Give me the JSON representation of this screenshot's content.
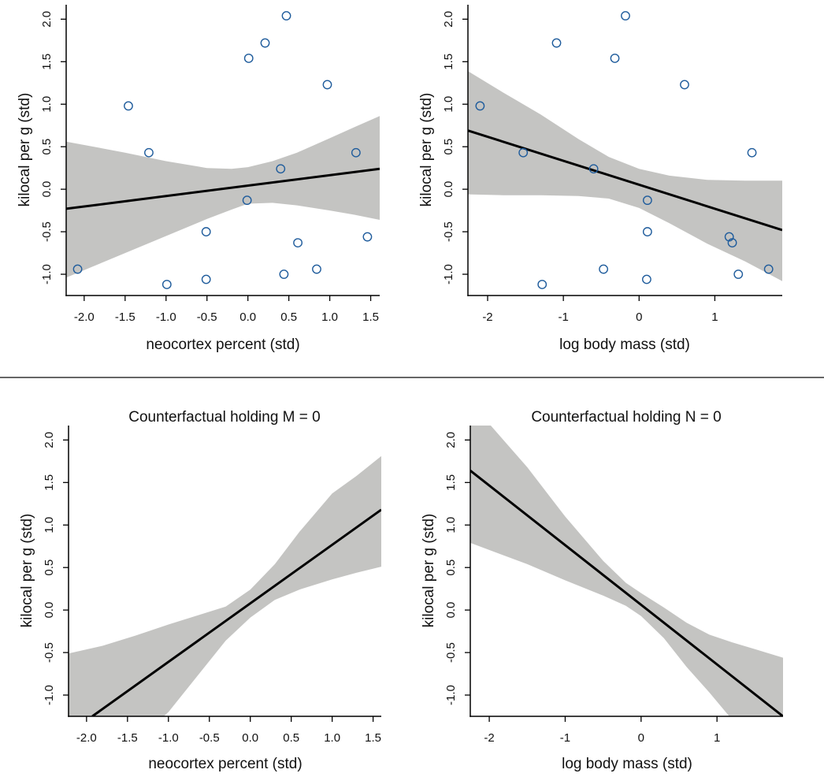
{
  "figure": {
    "divider_color": "#333333",
    "band_color": "#c4c4c2",
    "line_color": "#000000",
    "point_color": "#1f5c9c"
  },
  "chart_data": [
    {
      "id": "top-left",
      "type": "scatter",
      "title": "",
      "xlabel": "neocortex percent (std)",
      "ylabel": "kilocal per g (std)",
      "xlim": [
        -2.22,
        1.61
      ],
      "ylim": [
        -1.25,
        2.17
      ],
      "xticks": [
        -2.0,
        -1.5,
        -1.0,
        -0.5,
        0.0,
        0.5,
        1.0,
        1.5
      ],
      "xtick_labels": [
        "-2.0",
        "-1.5",
        "-1.0",
        "-0.5",
        "0.0",
        "0.5",
        "1.0",
        "1.5"
      ],
      "yticks": [
        -1.0,
        -0.5,
        0.0,
        0.5,
        1.0,
        1.5,
        2.0
      ],
      "ytick_labels": [
        "-1.0",
        "-0.5",
        "0.0",
        "0.5",
        "1.0",
        "1.5",
        "2.0"
      ],
      "grid": false,
      "points": [
        {
          "x": 0.47,
          "y": 2.04
        },
        {
          "x": 0.21,
          "y": 1.72
        },
        {
          "x": 0.01,
          "y": 1.54
        },
        {
          "x": 0.97,
          "y": 1.23
        },
        {
          "x": -1.46,
          "y": 0.98
        },
        {
          "x": -1.21,
          "y": 0.43
        },
        {
          "x": 1.32,
          "y": 0.43
        },
        {
          "x": 0.4,
          "y": 0.24
        },
        {
          "x": -0.01,
          "y": -0.13
        },
        {
          "x": -0.51,
          "y": -0.5
        },
        {
          "x": 1.46,
          "y": -0.56
        },
        {
          "x": 0.61,
          "y": -0.63
        },
        {
          "x": -2.08,
          "y": -0.94
        },
        {
          "x": 0.84,
          "y": -0.94
        },
        {
          "x": 0.44,
          "y": -1.0
        },
        {
          "x": -0.51,
          "y": -1.06
        },
        {
          "x": -0.99,
          "y": -1.12
        }
      ],
      "mean_line": {
        "x": [
          -2.22,
          1.61
        ],
        "y": [
          -0.23,
          0.24
        ]
      },
      "interval": {
        "x": [
          -2.22,
          -1.5,
          -1.0,
          -0.5,
          -0.2,
          0.0,
          0.3,
          0.6,
          1.0,
          1.3,
          1.61
        ],
        "upper": [
          0.56,
          0.43,
          0.33,
          0.25,
          0.24,
          0.26,
          0.33,
          0.43,
          0.6,
          0.73,
          0.86
        ],
        "lower": [
          -1.04,
          -0.75,
          -0.55,
          -0.35,
          -0.24,
          -0.17,
          -0.16,
          -0.19,
          -0.25,
          -0.3,
          -0.36
        ]
      }
    },
    {
      "id": "top-right",
      "type": "scatter",
      "title": "",
      "xlabel": "log body mass (std)",
      "ylabel": "kilocal per g (std)",
      "xlim": [
        -2.26,
        1.89
      ],
      "ylim": [
        -1.25,
        2.17
      ],
      "xticks": [
        -2,
        -1,
        0,
        1
      ],
      "xtick_labels": [
        "-2",
        "-1",
        "0",
        "1"
      ],
      "yticks": [
        -1.0,
        -0.5,
        0.0,
        0.5,
        1.0,
        1.5,
        2.0
      ],
      "ytick_labels": [
        "-1.0",
        "-0.5",
        "0.0",
        "0.5",
        "1.0",
        "1.5",
        "2.0"
      ],
      "grid": false,
      "points": [
        {
          "x": -0.18,
          "y": 2.04
        },
        {
          "x": -1.09,
          "y": 1.72
        },
        {
          "x": -0.32,
          "y": 1.54
        },
        {
          "x": 0.6,
          "y": 1.23
        },
        {
          "x": -2.1,
          "y": 0.98
        },
        {
          "x": -1.53,
          "y": 0.43
        },
        {
          "x": 1.49,
          "y": 0.43
        },
        {
          "x": -0.6,
          "y": 0.24
        },
        {
          "x": 0.11,
          "y": -0.13
        },
        {
          "x": 0.11,
          "y": -0.5
        },
        {
          "x": 1.19,
          "y": -0.56
        },
        {
          "x": 1.23,
          "y": -0.63
        },
        {
          "x": -0.47,
          "y": -0.94
        },
        {
          "x": 1.71,
          "y": -0.94
        },
        {
          "x": 1.31,
          "y": -1.0
        },
        {
          "x": 0.1,
          "y": -1.06
        },
        {
          "x": -1.28,
          "y": -1.12
        }
      ],
      "mean_line": {
        "x": [
          -2.26,
          1.89
        ],
        "y": [
          0.69,
          -0.48
        ]
      },
      "interval": {
        "x": [
          -2.26,
          -1.8,
          -1.3,
          -0.8,
          -0.4,
          0.0,
          0.4,
          0.9,
          1.4,
          1.89
        ],
        "upper": [
          1.39,
          1.14,
          0.88,
          0.59,
          0.38,
          0.24,
          0.16,
          0.11,
          0.1,
          0.1
        ],
        "lower": [
          -0.06,
          -0.07,
          -0.07,
          -0.08,
          -0.11,
          -0.22,
          -0.4,
          -0.64,
          -0.85,
          -1.08
        ]
      }
    },
    {
      "id": "bottom-left",
      "type": "line",
      "title": "Counterfactual holding M = 0",
      "xlabel": "neocortex percent (std)",
      "ylabel": "kilocal per g (std)",
      "xlim": [
        -2.22,
        1.6
      ],
      "ylim": [
        -1.25,
        2.17
      ],
      "xticks": [
        -2.0,
        -1.5,
        -1.0,
        -0.5,
        0.0,
        0.5,
        1.0,
        1.5
      ],
      "xtick_labels": [
        "-2.0",
        "-1.5",
        "-1.0",
        "-0.5",
        "0.0",
        "0.5",
        "1.0",
        "1.5"
      ],
      "yticks": [
        -1.0,
        -0.5,
        0.0,
        0.5,
        1.0,
        1.5,
        2.0
      ],
      "ytick_labels": [
        "-1.0",
        "-0.5",
        "0.0",
        "0.5",
        "1.0",
        "1.5",
        "2.0"
      ],
      "grid": false,
      "points": [],
      "mean_line": {
        "x": [
          -1.93,
          1.6
        ],
        "y": [
          -1.25,
          1.18
        ]
      },
      "interval": {
        "x": [
          -2.22,
          -1.8,
          -1.4,
          -1.0,
          -0.6,
          -0.3,
          0.0,
          0.3,
          0.6,
          1.0,
          1.3,
          1.6
        ],
        "upper": [
          -0.51,
          -0.42,
          -0.3,
          -0.17,
          -0.05,
          0.04,
          0.24,
          0.54,
          0.92,
          1.37,
          1.58,
          1.81
        ],
        "lower": [
          -2.2,
          -1.9,
          -1.55,
          -1.2,
          -0.72,
          -0.36,
          -0.09,
          0.12,
          0.24,
          0.36,
          0.44,
          0.51
        ]
      }
    },
    {
      "id": "bottom-right",
      "type": "line",
      "title": "Counterfactual holding N = 0",
      "xlabel": "log body mass (std)",
      "ylabel": "kilocal per g (std)",
      "xlim": [
        -2.25,
        1.87
      ],
      "ylim": [
        -1.25,
        2.17
      ],
      "xticks": [
        -2,
        -1,
        0,
        1
      ],
      "xtick_labels": [
        "-2",
        "-1",
        "0",
        "1"
      ],
      "yticks": [
        -1.0,
        -0.5,
        0.0,
        0.5,
        1.0,
        1.5,
        2.0
      ],
      "ytick_labels": [
        "-1.0",
        "-0.5",
        "0.0",
        "0.5",
        "1.0",
        "1.5",
        "2.0"
      ],
      "grid": false,
      "points": [],
      "mean_line": {
        "x": [
          -2.25,
          1.87
        ],
        "y": [
          1.64,
          -1.25
        ]
      },
      "interval": {
        "x": [
          -2.25,
          -1.98,
          -1.5,
          -1.0,
          -0.5,
          -0.2,
          0.0,
          0.3,
          0.6,
          0.9,
          1.2,
          1.5,
          1.87
        ],
        "upper": [
          2.6,
          2.17,
          1.68,
          1.1,
          0.58,
          0.32,
          0.2,
          0.03,
          -0.15,
          -0.29,
          -0.38,
          -0.46,
          -0.56
        ],
        "lower": [
          0.79,
          0.7,
          0.54,
          0.35,
          0.17,
          0.05,
          -0.07,
          -0.33,
          -0.67,
          -0.97,
          -1.29,
          -1.6,
          -1.95
        ]
      }
    }
  ]
}
